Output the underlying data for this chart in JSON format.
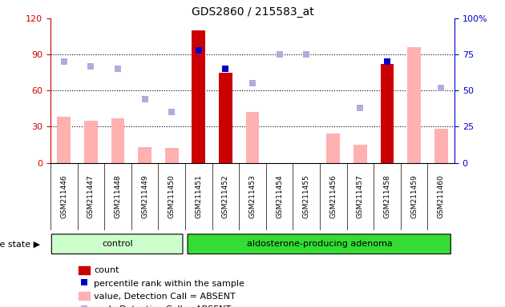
{
  "title": "GDS2860 / 215583_at",
  "samples": [
    "GSM211446",
    "GSM211447",
    "GSM211448",
    "GSM211449",
    "GSM211450",
    "GSM211451",
    "GSM211452",
    "GSM211453",
    "GSM211454",
    "GSM211455",
    "GSM211456",
    "GSM211457",
    "GSM211458",
    "GSM211459",
    "GSM211460"
  ],
  "count": [
    0,
    0,
    0,
    0,
    0,
    110,
    75,
    0,
    0,
    0,
    0,
    0,
    82,
    0,
    0
  ],
  "percentile_rank": [
    null,
    null,
    null,
    null,
    null,
    78,
    65,
    null,
    null,
    null,
    null,
    null,
    70,
    null,
    null
  ],
  "value_absent": [
    38,
    35,
    37,
    13,
    12,
    null,
    75,
    42,
    null,
    null,
    24,
    15,
    null,
    96,
    28
  ],
  "rank_absent": [
    70,
    67,
    65,
    44,
    35,
    null,
    null,
    55,
    75,
    75,
    null,
    38,
    null,
    null,
    52
  ],
  "control_count": 5,
  "adenoma_count": 10,
  "ylim_left": [
    0,
    120
  ],
  "ylim_right": [
    0,
    100
  ],
  "yticks_left": [
    0,
    30,
    60,
    90,
    120
  ],
  "yticks_right": [
    0,
    25,
    50,
    75,
    100
  ],
  "ytick_labels_left": [
    "0",
    "30",
    "60",
    "90",
    "120"
  ],
  "ytick_labels_right": [
    "0",
    "25",
    "50",
    "75",
    "100%"
  ],
  "color_count": "#cc0000",
  "color_percentile": "#0000cc",
  "color_value_absent": "#ffb0b0",
  "color_rank_absent": "#aab0d8",
  "color_control_bg": "#ccffcc",
  "color_adenoma_bg": "#33dd33",
  "color_axis_left": "#cc0000",
  "color_axis_right": "#0000cc",
  "color_plot_bg": "#ffffff",
  "color_xtick_bg": "#cccccc",
  "legend_items": [
    "count",
    "percentile rank within the sample",
    "value, Detection Call = ABSENT",
    "rank, Detection Call = ABSENT"
  ],
  "disease_state_label": "disease state",
  "control_label": "control",
  "adenoma_label": "aldosterone-producing adenoma"
}
